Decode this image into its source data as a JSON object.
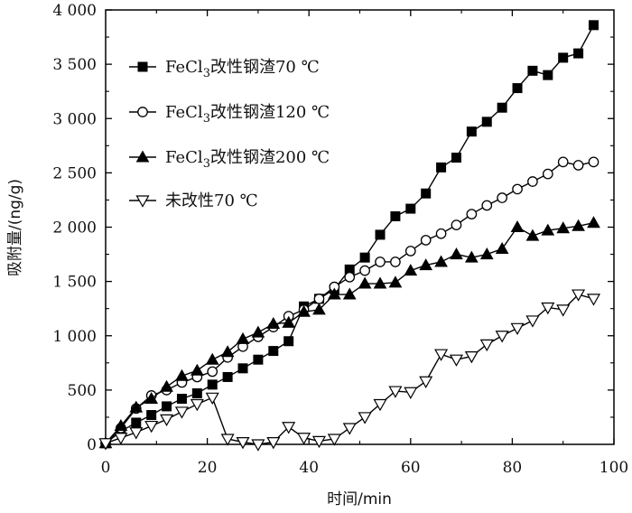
{
  "chart_data": {
    "type": "line",
    "xlabel": "时间/min",
    "ylabel": "吸附量/(ng/g)",
    "xlim": [
      0,
      100
    ],
    "ylim": [
      0,
      4000
    ],
    "xticks": [
      0,
      20,
      40,
      60,
      80,
      100
    ],
    "xtick_labels": [
      "0",
      "20",
      "40",
      "60",
      "80",
      "100"
    ],
    "yticks": [
      0,
      500,
      1000,
      1500,
      2000,
      2500,
      3000,
      3500,
      4000
    ],
    "ytick_labels": [
      "0",
      "500",
      "1 000",
      "1 500",
      "2 000",
      "2 500",
      "3 000",
      "3 500",
      "4 000"
    ],
    "grid": false,
    "legend_position": "top-left",
    "series": [
      {
        "name": "FeCl3改性钢渣70 ℃",
        "legend_parts": [
          "FeCl",
          "3",
          "改性钢渣70 ℃"
        ],
        "marker": "square-filled",
        "x": [
          0,
          3,
          6,
          9,
          12,
          15,
          18,
          21,
          24,
          27,
          30,
          33,
          36,
          39,
          42,
          45,
          48,
          51,
          54,
          57,
          60,
          63,
          66,
          69,
          72,
          75,
          78,
          81,
          84,
          87,
          90,
          93,
          96
        ],
        "y": [
          10,
          120,
          200,
          270,
          350,
          420,
          470,
          550,
          620,
          700,
          780,
          860,
          950,
          1270,
          1340,
          1430,
          1610,
          1720,
          1930,
          2100,
          2170,
          2310,
          2550,
          2640,
          2880,
          2970,
          3100,
          3280,
          3440,
          3400,
          3560,
          3600,
          3860
        ]
      },
      {
        "name": "FeCl3改性钢渣120 ℃",
        "legend_parts": [
          "FeCl",
          "3",
          "改性钢渣120 ℃"
        ],
        "marker": "circle-open",
        "x": [
          0,
          3,
          6,
          9,
          12,
          15,
          18,
          21,
          24,
          27,
          30,
          33,
          36,
          39,
          42,
          45,
          48,
          51,
          54,
          57,
          60,
          63,
          66,
          69,
          72,
          75,
          78,
          81,
          84,
          87,
          90,
          93,
          96
        ],
        "y": [
          10,
          150,
          330,
          450,
          500,
          570,
          620,
          670,
          800,
          900,
          990,
          1080,
          1180,
          1240,
          1340,
          1450,
          1540,
          1600,
          1680,
          1680,
          1780,
          1880,
          1940,
          2020,
          2120,
          2200,
          2270,
          2350,
          2420,
          2490,
          2600,
          2570,
          2600
        ]
      },
      {
        "name": "FeCl3改性钢渣200 ℃",
        "legend_parts": [
          "FeCl",
          "3",
          "改性钢渣200 ℃"
        ],
        "marker": "triangle-up-filled",
        "x": [
          0,
          3,
          6,
          9,
          12,
          15,
          18,
          21,
          24,
          27,
          30,
          33,
          36,
          39,
          42,
          45,
          48,
          51,
          54,
          57,
          60,
          63,
          66,
          69,
          72,
          75,
          78,
          81,
          84,
          87,
          90,
          93,
          96
        ],
        "y": [
          10,
          170,
          340,
          420,
          530,
          630,
          680,
          780,
          850,
          970,
          1030,
          1110,
          1120,
          1220,
          1240,
          1380,
          1380,
          1480,
          1480,
          1490,
          1600,
          1650,
          1680,
          1750,
          1720,
          1750,
          1800,
          2000,
          1920,
          1970,
          1990,
          2010,
          2040
        ]
      },
      {
        "name": "未改性70 ℃",
        "marker": "triangle-down-open",
        "x": [
          0,
          3,
          6,
          9,
          12,
          15,
          18,
          21,
          24,
          27,
          30,
          33,
          36,
          39,
          42,
          45,
          48,
          51,
          54,
          57,
          60,
          63,
          66,
          69,
          72,
          75,
          78,
          81,
          84,
          87,
          90,
          93,
          96
        ],
        "y": [
          10,
          60,
          110,
          170,
          230,
          300,
          370,
          430,
          50,
          20,
          0,
          20,
          160,
          60,
          30,
          50,
          150,
          250,
          370,
          490,
          480,
          580,
          830,
          780,
          810,
          920,
          1000,
          1070,
          1140,
          1260,
          1240,
          1380,
          1340
        ]
      }
    ]
  }
}
